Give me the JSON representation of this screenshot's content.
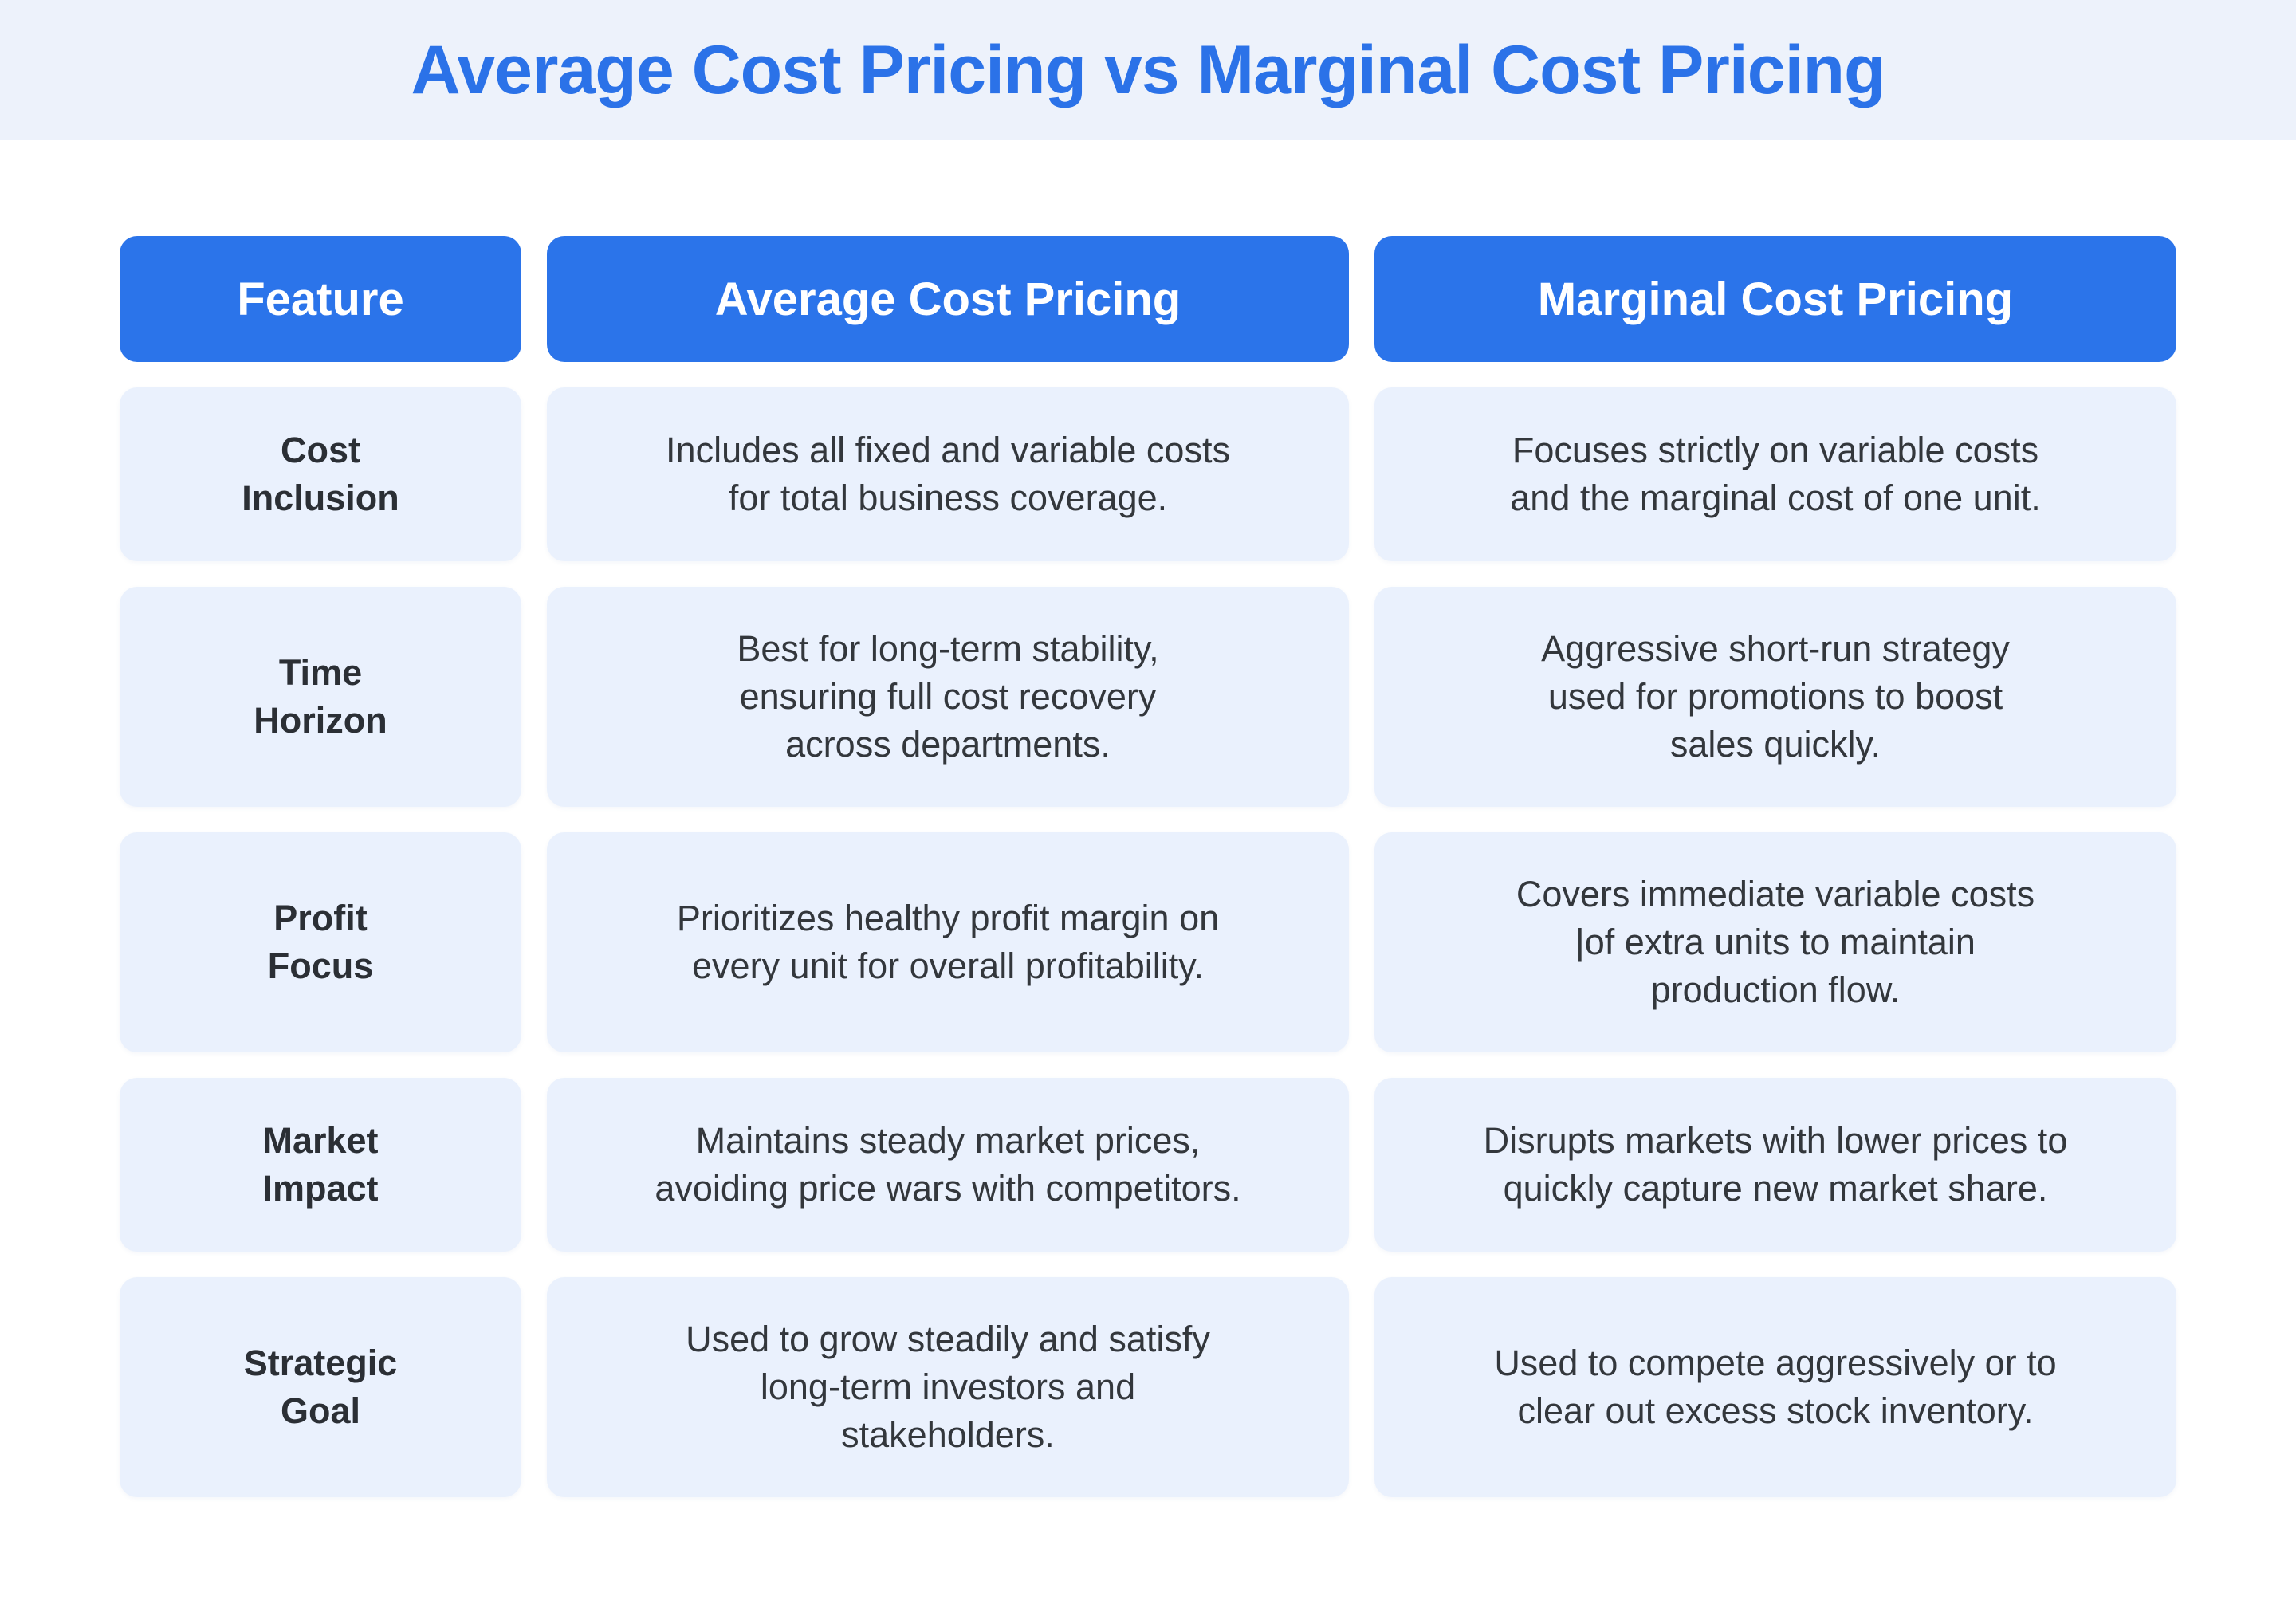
{
  "title": "Average Cost Pricing vs Marginal Cost Pricing",
  "colors": {
    "accent": "#2b74ea",
    "title": "#2b72e8",
    "cell_background": "#eaf1fd",
    "title_band": "#edf2fb"
  },
  "table": {
    "headers": [
      "Feature",
      "Average Cost Pricing",
      "Marginal Cost Pricing"
    ],
    "rows": [
      {
        "feature": "Cost\nInclusion",
        "average": "Includes all fixed and variable costs\nfor total business coverage.",
        "marginal": "Focuses strictly on variable costs\nand the marginal cost of one unit."
      },
      {
        "feature": "Time\nHorizon",
        "average": "Best for long-term stability,\nensuring full cost recovery\nacross departments.",
        "marginal": "Aggressive short-run strategy\nused for promotions to boost\nsales quickly."
      },
      {
        "feature": "Profit\nFocus",
        "average": "Prioritizes healthy profit margin on\nevery unit for overall profitability.",
        "marginal": "Covers immediate variable costs\n|of extra units to maintain\nproduction flow."
      },
      {
        "feature": "Market\nImpact",
        "average": "Maintains steady market prices,\navoiding price wars with competitors.",
        "marginal": "Disrupts markets with lower prices to\nquickly capture new market share."
      },
      {
        "feature": "Strategic\nGoal",
        "average": "Used to grow steadily and satisfy\nlong-term investors and\nstakeholders.",
        "marginal": "Used to compete aggressively or to\nclear out excess stock inventory."
      }
    ]
  }
}
